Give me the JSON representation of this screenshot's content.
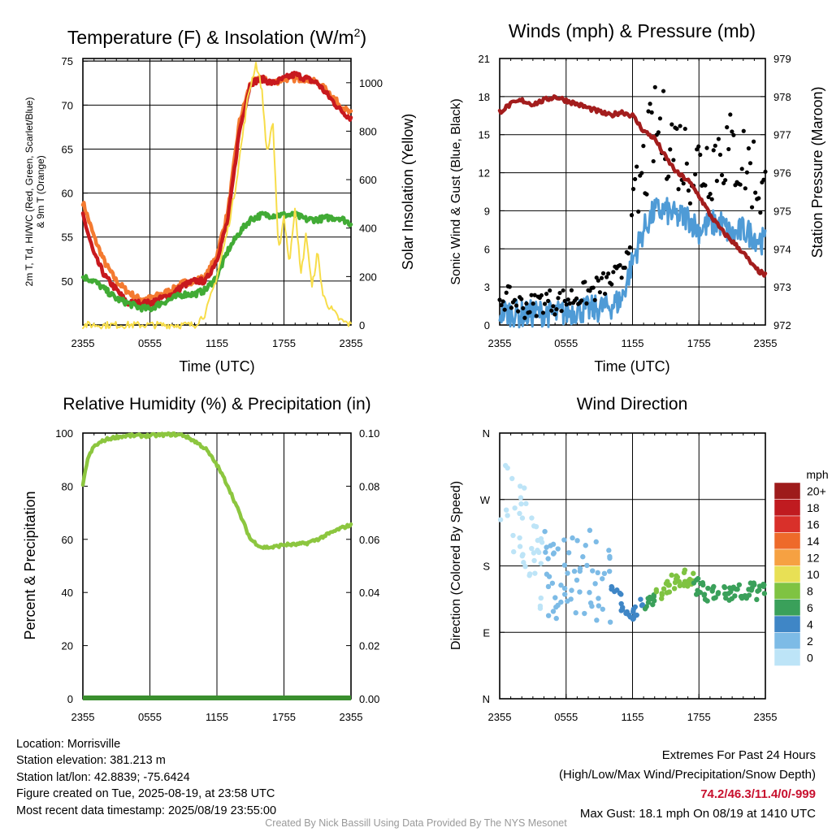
{
  "chart_data": [
    {
      "id": "temp",
      "type": "line",
      "title": "Temperature (F) & Insolation (W/m²)",
      "title_main": "Temperature (F) & Insolation (W/m",
      "title_sup": "2",
      "title_end": ")",
      "xlabel": "Time (UTC)",
      "ylabel_lines": [
        "2m T, Td, HI/WC (Red, Green, Scarlet/Blue)",
        "& 9m T (Orange)"
      ],
      "y2label": "Solar Insolation (Yellow)",
      "x_ticks": [
        "2355",
        "0555",
        "1155",
        "1755",
        "2355"
      ],
      "ylim": [
        45,
        75.3
      ],
      "y_ticks": [
        50,
        55,
        60,
        65,
        70,
        75
      ],
      "y2lim": [
        0,
        1100
      ],
      "y2_ticks": [
        0,
        200,
        400,
        600,
        800,
        1000
      ],
      "series": [
        {
          "color": "#f47a30",
          "x": [
            0,
            1,
            2,
            3,
            4,
            5,
            6,
            7,
            8,
            9,
            10,
            11,
            12,
            13,
            14,
            15,
            16,
            17,
            18,
            19,
            20,
            21,
            22,
            23,
            24
          ],
          "y": [
            59,
            55,
            52,
            50,
            48.8,
            48,
            48,
            48.5,
            49,
            49.8,
            50,
            50.5,
            53,
            58,
            68,
            72.5,
            73,
            72.5,
            73,
            73,
            73,
            72.5,
            71.5,
            70,
            69
          ]
        },
        {
          "color": "#c8191e",
          "x": [
            0,
            1,
            2,
            3,
            4,
            5,
            6,
            7,
            8,
            9,
            10,
            11,
            12,
            13,
            14,
            15,
            16,
            17,
            18,
            19,
            20,
            21,
            22,
            23,
            24
          ],
          "y": [
            57.5,
            53,
            50.5,
            49,
            47.5,
            47.5,
            47.5,
            48,
            48.5,
            49.5,
            50,
            50,
            52.5,
            57,
            67,
            72.5,
            73,
            72.5,
            73,
            73.5,
            73,
            72.5,
            71,
            69.5,
            68.5
          ]
        },
        {
          "color": "#41ab35",
          "x": [
            0,
            1,
            2,
            3,
            4,
            5,
            6,
            7,
            8,
            9,
            10,
            11,
            12,
            13,
            14,
            15,
            16,
            17,
            18,
            19,
            20,
            21,
            22,
            23,
            24
          ],
          "y": [
            50.5,
            50,
            49,
            48,
            47.5,
            47,
            46.8,
            47.5,
            48,
            48.5,
            48.5,
            49,
            50.5,
            53.5,
            55.5,
            57,
            57.5,
            57.5,
            57.5,
            57.5,
            57,
            57,
            57.2,
            57.2,
            56.5
          ]
        },
        {
          "color": "#f7dd4a",
          "x": [
            0,
            6,
            8,
            10,
            11,
            12,
            13,
            13.6,
            14.2,
            14.8,
            15.5,
            16,
            16.5,
            17,
            17.5,
            18,
            18.5,
            19,
            19.5,
            20,
            20.5,
            21,
            21.5,
            22,
            23,
            24
          ],
          "y": [
            0,
            0,
            0,
            0,
            50,
            200,
            400,
            550,
            750,
            950,
            1080,
            980,
            700,
            850,
            300,
            450,
            250,
            500,
            200,
            380,
            150,
            300,
            120,
            80,
            20,
            0
          ],
          "axis": "y2"
        }
      ]
    },
    {
      "id": "wind",
      "type": "scatter",
      "title": "Winds (mph) & Pressure (mb)",
      "xlabel": "Time (UTC)",
      "ylabel": "Sonic Wind & Gust (Blue, Black)",
      "y2label": "Station Pressure (Maroon)",
      "x_ticks": [
        "2355",
        "0555",
        "1155",
        "1755",
        "2355"
      ],
      "ylim": [
        0,
        21
      ],
      "y_ticks": [
        0,
        3,
        6,
        9,
        12,
        15,
        18,
        21
      ],
      "y2lim": [
        972,
        979
      ],
      "y2_ticks": [
        972,
        973,
        974,
        975,
        976,
        977,
        978,
        979
      ],
      "series": [
        {
          "color": "#4f9bd6",
          "x": [
            0,
            1,
            2,
            3,
            4,
            5,
            6,
            7,
            8,
            9,
            10,
            11,
            12,
            13,
            14,
            15,
            16,
            17,
            18,
            19,
            20,
            21,
            22,
            23,
            24
          ],
          "y": [
            1,
            1,
            0.8,
            0.9,
            1,
            0.8,
            1,
            1.2,
            1.2,
            1.3,
            1.5,
            2,
            5,
            7.5,
            9,
            9,
            8.5,
            8.5,
            7.5,
            8,
            8,
            7,
            7.5,
            7,
            6.5
          ]
        },
        {
          "color": "#000000",
          "x": [
            0,
            1,
            2,
            3,
            4,
            5,
            6,
            7,
            8,
            9,
            10,
            11,
            12,
            13,
            14,
            15,
            16,
            17,
            18,
            19,
            20,
            21,
            22,
            23,
            24
          ],
          "y": [
            2.2,
            2,
            1.5,
            1.5,
            2,
            1.8,
            2,
            2.3,
            2.5,
            3,
            3.5,
            4,
            8,
            12,
            15.5,
            15,
            14,
            13,
            12.5,
            13,
            14,
            13.5,
            13,
            12,
            10
          ]
        },
        {
          "color": "#a31d1d",
          "x": [
            0,
            1,
            2,
            3,
            4,
            5,
            6,
            7,
            8,
            9,
            10,
            11,
            12,
            13,
            14,
            15,
            16,
            17,
            18,
            19,
            20,
            21,
            22,
            23,
            24
          ],
          "y": [
            977.6,
            977.8,
            977.9,
            977.8,
            977.9,
            978,
            977.9,
            977.8,
            977.7,
            977.6,
            977.5,
            977.6,
            977.5,
            977.1,
            976.9,
            976.4,
            976,
            975.8,
            975.4,
            974.9,
            974.5,
            974.2,
            973.9,
            973.5,
            973.3
          ],
          "axis": "y2"
        }
      ]
    },
    {
      "id": "rh",
      "type": "line",
      "title": "Relative Humidity (%) & Precipitation (in)",
      "ylabel": "Percent & Precipitation",
      "x_ticks": [
        "2355",
        "0555",
        "1155",
        "1755",
        "2355"
      ],
      "ylim": [
        0,
        100
      ],
      "y_ticks": [
        0,
        20,
        40,
        60,
        80,
        100
      ],
      "y2lim": [
        0,
        0.1
      ],
      "y2_ticks": [
        "0.00",
        "0.02",
        "0.04",
        "0.06",
        "0.08",
        "0.10"
      ],
      "series": [
        {
          "color": "#8cc63f",
          "x": [
            0,
            0.4,
            1,
            2,
            3,
            4,
            5,
            6,
            7,
            8,
            9,
            10,
            11,
            12,
            13,
            14,
            15,
            16,
            17,
            18,
            19,
            20,
            21,
            22,
            23,
            24
          ],
          "y": [
            80,
            90,
            95,
            97.5,
            98.5,
            99,
            99,
            99,
            99.3,
            99.5,
            99.2,
            97,
            94,
            88,
            80,
            70,
            60,
            57,
            57,
            58,
            58,
            58.5,
            60,
            62,
            64,
            65.5
          ]
        },
        {
          "color": "#3a8f2e",
          "x": [
            0,
            24
          ],
          "y": [
            0,
            0
          ],
          "axis": "y2"
        }
      ]
    },
    {
      "id": "wdir",
      "type": "scatter",
      "title": "Wind Direction",
      "ylabel": "Direction (Colored By Speed)",
      "x_ticks": [
        "2355",
        "0555",
        "1155",
        "1755",
        "2355"
      ],
      "y_ticks": [
        "N",
        "E",
        "S",
        "W",
        "N"
      ],
      "ylim": [
        0,
        360
      ],
      "legend_title": "mph",
      "legend_labels": [
        "0",
        "2",
        "4",
        "6",
        "8",
        "10",
        "12",
        "14",
        "16",
        "18",
        "20+"
      ],
      "legend_colors": [
        "#bde4f7",
        "#7dbbe6",
        "#3f86c6",
        "#3aa05a",
        "#7fc342",
        "#e8e055",
        "#f6a142",
        "#ee6a2a",
        "#d9302a",
        "#c01b20",
        "#9e1b1b"
      ]
    }
  ],
  "footer": {
    "location": "Location: Morrisville",
    "elevation": "Station elevation: 381.213 m",
    "latlon": "Station lat/lon: 42.8839; -75.6424",
    "created": "Figure created on Tue, 2025-08-19, at 23:58 UTC",
    "recent": "Most recent data timestamp: 2025/08/19 23:55:00",
    "extremes_title": "Extremes For Past 24 Hours",
    "extremes_sub": "(High/Low/Max Wind/Precipitation/Snow Depth)",
    "extremes_values": "74.2/46.3/11.4/0/-999",
    "max_gust": "Max Gust: 18.1 mph On 08/19 at 1410 UTC",
    "credit": "Created By Nick Bassill Using Data Provided By The NYS Mesonet"
  }
}
